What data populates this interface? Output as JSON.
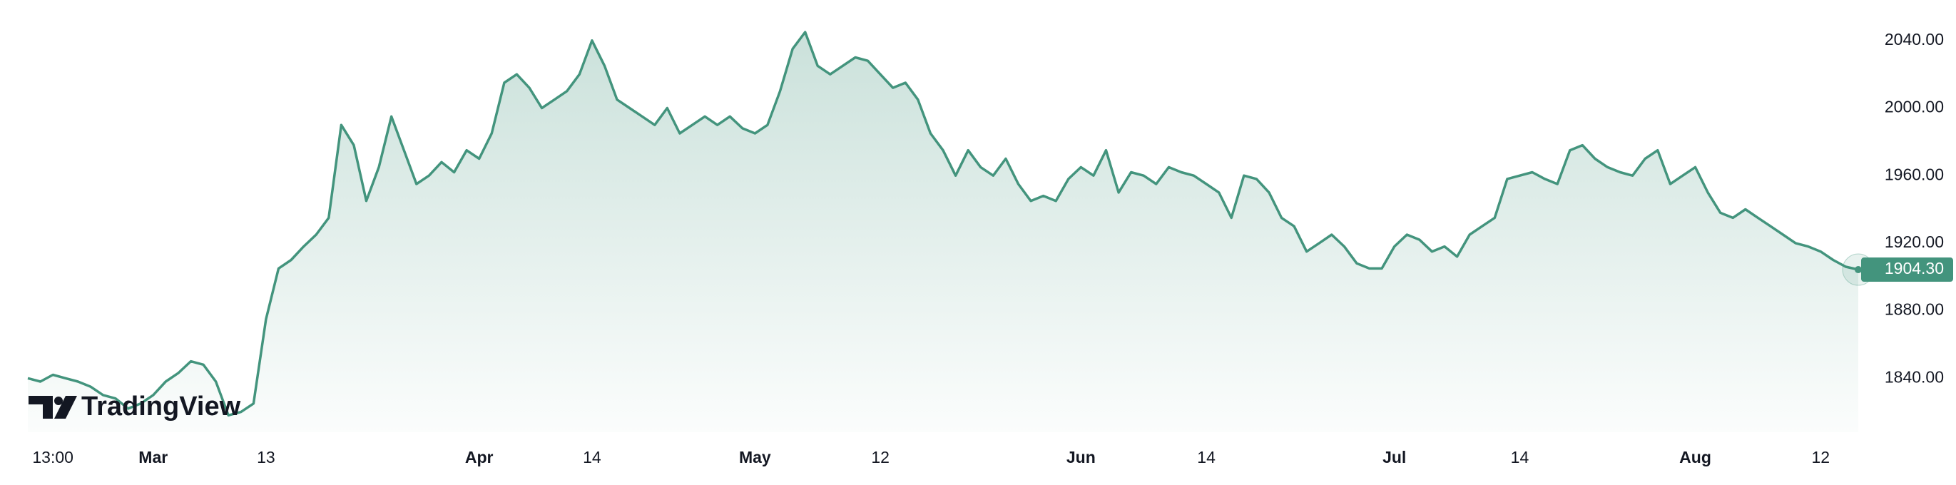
{
  "chart_data": {
    "type": "area",
    "watermark": "TradingView",
    "color": "#43947d",
    "grid": false,
    "categories": [
      null,
      null,
      "13:00",
      null,
      null,
      null,
      null,
      null,
      null,
      null,
      "Mar",
      null,
      null,
      null,
      null,
      null,
      null,
      null,
      null,
      "13",
      null,
      null,
      null,
      null,
      null,
      null,
      null,
      null,
      null,
      null,
      null,
      null,
      null,
      null,
      null,
      null,
      "Apr",
      null,
      null,
      null,
      null,
      null,
      null,
      null,
      null,
      "14",
      null,
      null,
      null,
      null,
      null,
      null,
      null,
      null,
      null,
      null,
      null,
      null,
      "May",
      null,
      null,
      null,
      null,
      null,
      null,
      null,
      null,
      null,
      "12",
      null,
      null,
      null,
      null,
      null,
      null,
      null,
      null,
      null,
      null,
      null,
      null,
      null,
      null,
      null,
      "Jun",
      null,
      null,
      null,
      null,
      null,
      null,
      null,
      null,
      null,
      "14",
      null,
      null,
      null,
      null,
      null,
      null,
      null,
      null,
      null,
      null,
      null,
      null,
      null,
      null,
      "Jul",
      null,
      null,
      null,
      null,
      null,
      null,
      null,
      null,
      null,
      "14",
      null,
      null,
      null,
      null,
      null,
      null,
      null,
      null,
      null,
      null,
      null,
      null,
      null,
      "Aug",
      null,
      null,
      null,
      null,
      null,
      null,
      null,
      null,
      null,
      "12",
      null,
      null,
      null
    ],
    "values": [
      1840,
      1838,
      1842,
      1840,
      1838,
      1835,
      1830,
      1828,
      1822,
      1825,
      1830,
      1838,
      1843,
      1850,
      1848,
      1838,
      1818,
      1820,
      1825,
      1875,
      1905,
      1910,
      1918,
      1925,
      1935,
      1990,
      1978,
      1945,
      1965,
      1995,
      1975,
      1955,
      1960,
      1968,
      1962,
      1975,
      1970,
      1985,
      2015,
      2020,
      2012,
      2000,
      2005,
      2010,
      2020,
      2040,
      2025,
      2005,
      2000,
      1995,
      1990,
      2000,
      1985,
      1990,
      1995,
      1990,
      1995,
      1988,
      1985,
      1990,
      2010,
      2035,
      2045,
      2025,
      2020,
      2025,
      2030,
      2028,
      2020,
      2012,
      2015,
      2005,
      1985,
      1975,
      1960,
      1975,
      1965,
      1960,
      1970,
      1955,
      1945,
      1948,
      1945,
      1958,
      1965,
      1960,
      1975,
      1950,
      1962,
      1960,
      1955,
      1965,
      1962,
      1960,
      1955,
      1950,
      1935,
      1960,
      1958,
      1950,
      1935,
      1930,
      1915,
      1920,
      1925,
      1918,
      1908,
      1905,
      1905,
      1918,
      1925,
      1922,
      1915,
      1918,
      1912,
      1925,
      1930,
      1935,
      1958,
      1960,
      1962,
      1958,
      1955,
      1975,
      1978,
      1970,
      1965,
      1962,
      1960,
      1970,
      1975,
      1955,
      1960,
      1965,
      1950,
      1938,
      1935,
      1940,
      1935,
      1930,
      1925,
      1920,
      1918,
      1915,
      1910,
      1906,
      1904.3
    ],
    "value_labels": [
      null,
      null,
      null,
      null,
      null,
      null,
      null,
      null,
      null,
      null,
      null,
      null,
      null,
      null,
      null,
      null,
      null,
      null,
      null,
      null,
      null,
      null,
      null,
      null,
      null,
      null,
      null,
      null,
      null,
      null,
      null,
      null,
      null,
      null,
      null,
      null,
      null,
      null,
      null,
      null,
      null,
      null,
      null,
      null,
      null,
      null,
      null,
      null,
      null,
      null,
      null,
      null,
      null,
      null,
      null,
      null,
      null,
      null,
      null,
      null,
      null,
      null,
      null,
      null,
      null,
      null,
      null,
      null,
      null,
      null,
      null,
      null,
      null,
      null,
      null,
      null,
      null,
      null,
      null,
      null,
      null,
      null,
      null,
      null,
      null,
      null,
      null,
      null,
      null,
      null,
      null,
      null,
      null,
      null,
      null,
      null,
      null,
      null,
      null,
      null,
      null,
      null,
      null,
      null,
      null,
      null,
      null,
      null,
      null,
      null,
      null,
      null,
      null,
      null,
      null,
      null,
      null,
      null,
      null,
      null,
      null,
      null,
      null,
      null,
      null,
      null,
      null,
      null,
      null,
      null,
      null,
      null,
      null,
      null,
      null,
      null,
      null,
      null,
      null,
      null,
      null,
      null,
      null,
      null,
      null,
      null,
      "1904.30"
    ],
    "ylim": [
      1808,
      2064
    ],
    "yticks": [
      {
        "value": 1840,
        "label": "1840.00"
      },
      {
        "value": 1880,
        "label": "1880.00"
      },
      {
        "value": 1920,
        "label": "1920.00"
      },
      {
        "value": 1960,
        "label": "1960.00"
      },
      {
        "value": 2000,
        "label": "2000.00"
      },
      {
        "value": 2040,
        "label": "2040.00"
      }
    ]
  }
}
